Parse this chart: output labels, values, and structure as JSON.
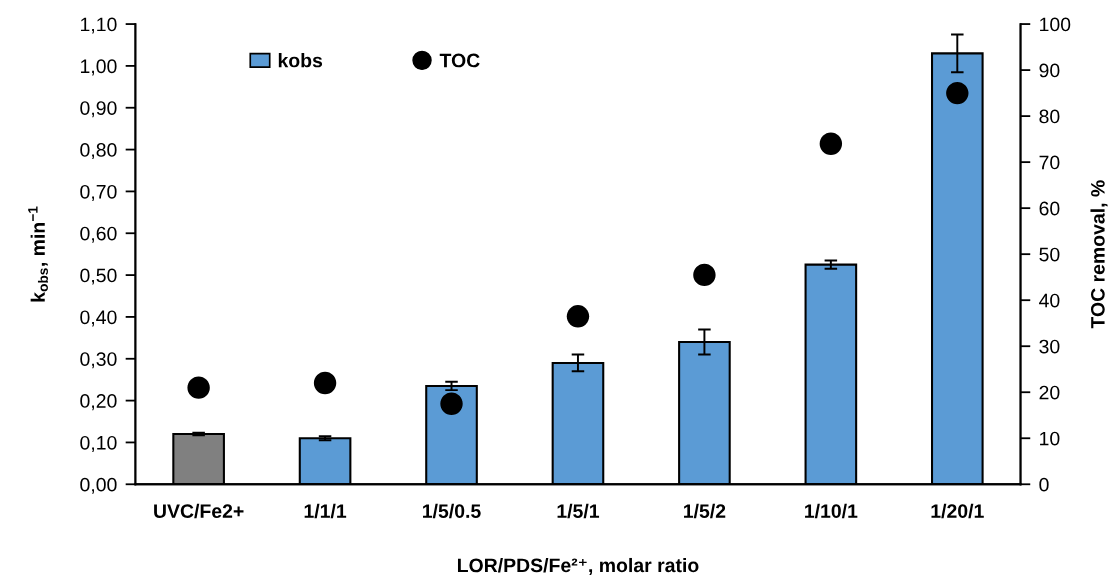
{
  "chart_data": {
    "type": "bar",
    "categories": [
      "UVC/Fe2+",
      "1/1/1",
      "1/5/0.5",
      "1/5/1",
      "1/5/2",
      "1/10/1",
      "1/20/1"
    ],
    "series": [
      {
        "name": "kobs",
        "color": "#5b9bd5",
        "colors": [
          "#808080",
          "#5b9bd5",
          "#5b9bd5",
          "#5b9bd5",
          "#5b9bd5",
          "#5b9bd5",
          "#5b9bd5"
        ],
        "values": [
          0.12,
          0.11,
          0.235,
          0.29,
          0.34,
          0.525,
          1.03
        ],
        "errors": [
          0.003,
          0.005,
          0.01,
          0.02,
          0.03,
          0.01,
          0.045
        ]
      },
      {
        "name": "TOC",
        "type": "scatter",
        "axis": "y2",
        "color": "#000000",
        "values": [
          21,
          22,
          17.5,
          36.5,
          45.5,
          74,
          85
        ]
      }
    ],
    "xlabel": "LOR/PDS/Fe²⁺, molar ratio",
    "ylabel": "k$_{obs}$, min$^{−1}$",
    "y2label": "TOC removal, %",
    "ylim": [
      0,
      1.1
    ],
    "yticks": [
      {
        "value": 0,
        "label": "0,00"
      },
      {
        "value": 0.1,
        "label": "0,10"
      },
      {
        "value": 0.2,
        "label": "0,20"
      },
      {
        "value": 0.3,
        "label": "0,30"
      },
      {
        "value": 0.4,
        "label": "0,40"
      },
      {
        "value": 0.5,
        "label": "0,50"
      },
      {
        "value": 0.6,
        "label": "0,60"
      },
      {
        "value": 0.7,
        "label": "0,70"
      },
      {
        "value": 0.8,
        "label": "0,80"
      },
      {
        "value": 0.9,
        "label": "0,90"
      },
      {
        "value": 1.0,
        "label": "1,00"
      },
      {
        "value": 1.1,
        "label": "1,10"
      }
    ],
    "y2lim": [
      0,
      100
    ],
    "y2ticks": [
      0,
      10,
      20,
      30,
      40,
      50,
      60,
      70,
      80,
      90,
      100
    ],
    "legend": "top left",
    "marker": "circle"
  }
}
